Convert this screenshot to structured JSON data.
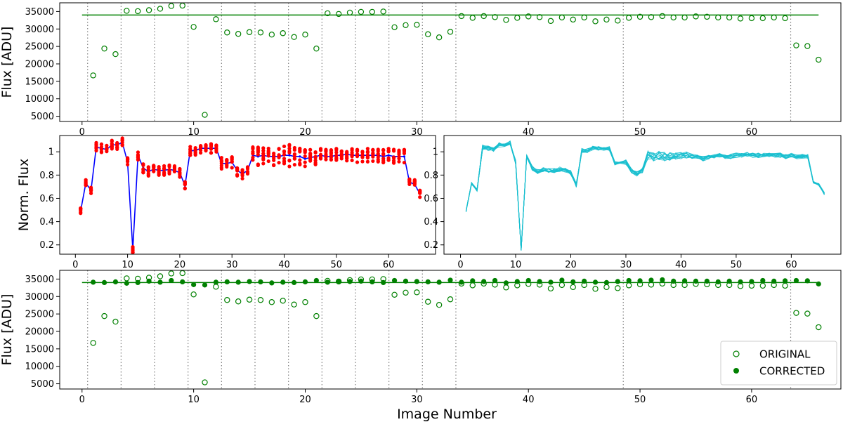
{
  "colors": {
    "green": "#008000",
    "red": "#ff0000",
    "blue": "#0000ff",
    "cyan": "#17becf",
    "divider": "#808080"
  },
  "chart_data": [
    {
      "id": "top",
      "type": "scatter",
      "xlabel": "",
      "ylabel": "Flux [ADU]",
      "xlim": [
        -2,
        68
      ],
      "ylim": [
        3500,
        37500
      ],
      "xticks": [
        0,
        10,
        20,
        30,
        40,
        50,
        60
      ],
      "yticks": [
        5000,
        10000,
        15000,
        20000,
        25000,
        30000,
        35000
      ],
      "reference_line": {
        "y": 34000,
        "x": [
          0,
          66
        ]
      },
      "dividers": [
        0.5,
        3.5,
        6.5,
        9.5,
        12.5,
        15.5,
        18.5,
        21.5,
        24.5,
        27.5,
        30.5,
        33.5,
        48.5,
        63.5
      ],
      "series": [
        {
          "marker": "open-circle",
          "x": [
            1,
            2,
            3,
            4,
            5,
            6,
            7,
            8,
            9,
            10,
            11,
            12,
            13,
            14,
            15,
            16,
            17,
            18,
            19,
            20,
            21,
            22,
            23,
            24,
            25,
            26,
            27,
            28,
            29,
            30,
            31,
            32,
            33,
            34,
            35,
            36,
            37,
            38,
            39,
            40,
            41,
            42,
            43,
            44,
            45,
            46,
            47,
            48,
            49,
            50,
            51,
            52,
            53,
            54,
            55,
            56,
            57,
            58,
            59,
            60,
            61,
            62,
            63,
            64,
            65,
            66
          ],
          "values": [
            16700,
            24400,
            22800,
            35200,
            35100,
            35400,
            35800,
            36600,
            36700,
            30600,
            5400,
            32800,
            29000,
            28600,
            29100,
            29000,
            28400,
            28800,
            27700,
            28400,
            24400,
            34500,
            34300,
            34700,
            34900,
            34900,
            35000,
            30500,
            31100,
            31200,
            28500,
            27600,
            29200,
            33700,
            33200,
            33700,
            33400,
            32600,
            33200,
            33600,
            33400,
            32300,
            33300,
            32700,
            33300,
            32200,
            32700,
            32400,
            33200,
            33500,
            33400,
            33700,
            33300,
            33300,
            33600,
            33500,
            33300,
            33300,
            33000,
            33100,
            33100,
            33300,
            33100,
            25300,
            25100,
            21200
          ]
        }
      ]
    },
    {
      "id": "middle-left",
      "type": "line",
      "xlabel": "",
      "ylabel": "Norm. Flux",
      "xlim": [
        -3,
        69
      ],
      "ylim": [
        0.12,
        1.14
      ],
      "xticks": [
        0,
        10,
        20,
        30,
        40,
        50,
        60
      ],
      "yticks": [
        0.2,
        0.4,
        0.6,
        0.8,
        1.0
      ],
      "series": [
        {
          "color": "blue",
          "style": "line-with-markers",
          "x": [
            1,
            2,
            3,
            4,
            5,
            6,
            7,
            8,
            9,
            10,
            11,
            12,
            13,
            14,
            15,
            16,
            17,
            18,
            19,
            20,
            21,
            22,
            23,
            24,
            25,
            26,
            27,
            28,
            29,
            30,
            31,
            32,
            33,
            34,
            35,
            36,
            37,
            38,
            39,
            40,
            41,
            42,
            43,
            44,
            45,
            46,
            47,
            48,
            49,
            50,
            51,
            52,
            53,
            54,
            55,
            56,
            57,
            58,
            59,
            60,
            61,
            62,
            63,
            64,
            65,
            66
          ],
          "values": [
            0.49,
            0.73,
            0.67,
            1.04,
            1.03,
            1.02,
            1.06,
            1.06,
            1.08,
            0.91,
            0.16,
            0.97,
            0.86,
            0.83,
            0.85,
            0.84,
            0.84,
            0.85,
            0.84,
            0.82,
            0.71,
            1.01,
            1.01,
            1.03,
            1.03,
            1.03,
            1.03,
            0.9,
            0.9,
            0.91,
            0.84,
            0.81,
            0.84,
            0.97,
            0.96,
            0.97,
            0.96,
            0.96,
            0.96,
            0.97,
            0.97,
            0.96,
            0.96,
            0.94,
            0.95,
            0.96,
            0.97,
            0.96,
            0.96,
            0.97,
            0.97,
            0.98,
            0.97,
            0.97,
            0.97,
            0.97,
            0.97,
            0.97,
            0.96,
            0.97,
            0.96,
            0.96,
            0.96,
            0.74,
            0.72,
            0.64
          ]
        },
        {
          "color": "red",
          "style": "dots",
          "note": "individual star measurements, scattered around the blue median",
          "spread": [
            0.03,
            0.03,
            0.03,
            0.04,
            0.04,
            0.04,
            0.04,
            0.04,
            0.04,
            0.04,
            0.03,
            0.04,
            0.04,
            0.04,
            0.04,
            0.04,
            0.04,
            0.04,
            0.04,
            0.04,
            0.04,
            0.04,
            0.04,
            0.04,
            0.04,
            0.04,
            0.04,
            0.05,
            0.05,
            0.05,
            0.05,
            0.04,
            0.04,
            0.08,
            0.08,
            0.08,
            0.08,
            0.08,
            0.08,
            0.08,
            0.1,
            0.08,
            0.08,
            0.08,
            0.07,
            0.07,
            0.06,
            0.06,
            0.06,
            0.06,
            0.06,
            0.06,
            0.06,
            0.06,
            0.06,
            0.06,
            0.06,
            0.06,
            0.06,
            0.06,
            0.06,
            0.06,
            0.06,
            0.04,
            0.04,
            0.03
          ]
        }
      ]
    },
    {
      "id": "middle-right",
      "type": "line",
      "xlabel": "",
      "ylabel": "",
      "xlim": [
        -3,
        69
      ],
      "ylim": [
        0.12,
        1.14
      ],
      "xticks": [
        0,
        10,
        20,
        30,
        40,
        50,
        60
      ],
      "yticks": [
        0.2,
        0.4,
        0.6,
        0.8,
        1.0
      ],
      "series": [
        {
          "color": "cyan",
          "style": "line-bundle",
          "line_count": 12,
          "x": [
            1,
            2,
            3,
            4,
            5,
            6,
            7,
            8,
            9,
            10,
            11,
            12,
            13,
            14,
            15,
            16,
            17,
            18,
            19,
            20,
            21,
            22,
            23,
            24,
            25,
            26,
            27,
            28,
            29,
            30,
            31,
            32,
            33,
            34,
            35,
            36,
            37,
            38,
            39,
            40,
            41,
            42,
            43,
            44,
            45,
            46,
            47,
            48,
            49,
            50,
            51,
            52,
            53,
            54,
            55,
            56,
            57,
            58,
            59,
            60,
            61,
            62,
            63,
            64,
            65,
            66
          ],
          "values": [
            0.49,
            0.73,
            0.67,
            1.04,
            1.03,
            1.02,
            1.06,
            1.06,
            1.08,
            0.91,
            0.16,
            0.97,
            0.86,
            0.83,
            0.85,
            0.84,
            0.84,
            0.85,
            0.84,
            0.82,
            0.71,
            1.01,
            1.01,
            1.03,
            1.03,
            1.03,
            1.03,
            0.9,
            0.9,
            0.91,
            0.84,
            0.81,
            0.84,
            0.97,
            0.96,
            0.97,
            0.96,
            0.96,
            0.96,
            0.97,
            0.97,
            0.96,
            0.96,
            0.94,
            0.95,
            0.96,
            0.97,
            0.96,
            0.96,
            0.97,
            0.97,
            0.98,
            0.97,
            0.97,
            0.97,
            0.97,
            0.97,
            0.97,
            0.96,
            0.97,
            0.96,
            0.96,
            0.96,
            0.74,
            0.72,
            0.64
          ],
          "spread": [
            0.01,
            0.01,
            0.01,
            0.02,
            0.02,
            0.02,
            0.02,
            0.02,
            0.02,
            0.02,
            0.01,
            0.02,
            0.02,
            0.02,
            0.02,
            0.02,
            0.02,
            0.02,
            0.02,
            0.02,
            0.02,
            0.02,
            0.02,
            0.02,
            0.02,
            0.02,
            0.02,
            0.02,
            0.02,
            0.02,
            0.02,
            0.02,
            0.02,
            0.04,
            0.04,
            0.04,
            0.04,
            0.04,
            0.03,
            0.03,
            0.03,
            0.02,
            0.02,
            0.02,
            0.02,
            0.02,
            0.02,
            0.02,
            0.02,
            0.02,
            0.02,
            0.02,
            0.02,
            0.02,
            0.02,
            0.02,
            0.02,
            0.02,
            0.02,
            0.02,
            0.02,
            0.02,
            0.02,
            0.01,
            0.01,
            0.01
          ]
        }
      ]
    },
    {
      "id": "bottom",
      "type": "scatter",
      "xlabel": "Image Number",
      "ylabel": "Flux [ADU]",
      "xlim": [
        -2,
        68
      ],
      "ylim": [
        3500,
        37500
      ],
      "xticks": [
        0,
        10,
        20,
        30,
        40,
        50,
        60
      ],
      "yticks": [
        5000,
        10000,
        15000,
        20000,
        25000,
        30000,
        35000
      ],
      "reference_line": {
        "y": 34000,
        "x": [
          0,
          66
        ]
      },
      "dividers": [
        0.5,
        3.5,
        6.5,
        9.5,
        12.5,
        15.5,
        18.5,
        21.5,
        24.5,
        27.5,
        30.5,
        33.5,
        48.5,
        63.5
      ],
      "legend": {
        "placement": "lower-right",
        "entries": [
          "ORIGINAL",
          "CORRECTED"
        ]
      },
      "series": [
        {
          "name": "ORIGINAL",
          "marker": "open-circle",
          "x": [
            1,
            2,
            3,
            4,
            5,
            6,
            7,
            8,
            9,
            10,
            11,
            12,
            13,
            14,
            15,
            16,
            17,
            18,
            19,
            20,
            21,
            22,
            23,
            24,
            25,
            26,
            27,
            28,
            29,
            30,
            31,
            32,
            33,
            34,
            35,
            36,
            37,
            38,
            39,
            40,
            41,
            42,
            43,
            44,
            45,
            46,
            47,
            48,
            49,
            50,
            51,
            52,
            53,
            54,
            55,
            56,
            57,
            58,
            59,
            60,
            61,
            62,
            63,
            64,
            65,
            66
          ],
          "values": [
            16700,
            24400,
            22800,
            35200,
            35100,
            35400,
            35800,
            36600,
            36700,
            30600,
            5400,
            32800,
            29000,
            28600,
            29100,
            29000,
            28400,
            28800,
            27700,
            28400,
            24400,
            34500,
            34300,
            34700,
            34900,
            34900,
            35000,
            30500,
            31100,
            31200,
            28500,
            27600,
            29200,
            33700,
            33200,
            33700,
            33400,
            32600,
            33200,
            33600,
            33400,
            32300,
            33300,
            32700,
            33300,
            32200,
            32700,
            32400,
            33200,
            33500,
            33400,
            33700,
            33300,
            33300,
            33600,
            33500,
            33300,
            33300,
            33000,
            33100,
            33100,
            33300,
            33100,
            25300,
            25100,
            21200
          ]
        },
        {
          "name": "CORRECTED",
          "marker": "filled-circle",
          "x": [
            1,
            2,
            3,
            4,
            5,
            6,
            7,
            8,
            9,
            10,
            11,
            12,
            13,
            14,
            15,
            16,
            17,
            18,
            19,
            20,
            21,
            22,
            23,
            24,
            25,
            26,
            27,
            28,
            29,
            30,
            31,
            32,
            33,
            34,
            35,
            36,
            37,
            38,
            39,
            40,
            41,
            42,
            43,
            44,
            45,
            46,
            47,
            48,
            49,
            50,
            51,
            52,
            53,
            54,
            55,
            56,
            57,
            58,
            59,
            60,
            61,
            62,
            63,
            64,
            65,
            66
          ],
          "values": [
            34100,
            34000,
            34200,
            33800,
            34000,
            34400,
            34100,
            34600,
            34200,
            33400,
            33300,
            34100,
            34200,
            34100,
            34300,
            34200,
            33900,
            34100,
            34000,
            34200,
            34600,
            34100,
            34200,
            34300,
            34400,
            34200,
            34000,
            34600,
            34400,
            34300,
            34200,
            34100,
            34700,
            34100,
            34500,
            34300,
            34600,
            33900,
            34300,
            34600,
            34300,
            34100,
            34700,
            34200,
            34400,
            34100,
            34000,
            34300,
            34600,
            34500,
            34700,
            34800,
            34400,
            34500,
            34400,
            34400,
            34200,
            34400,
            34200,
            34300,
            34600,
            34400,
            34500,
            34600,
            34500,
            33600
          ]
        }
      ]
    }
  ]
}
